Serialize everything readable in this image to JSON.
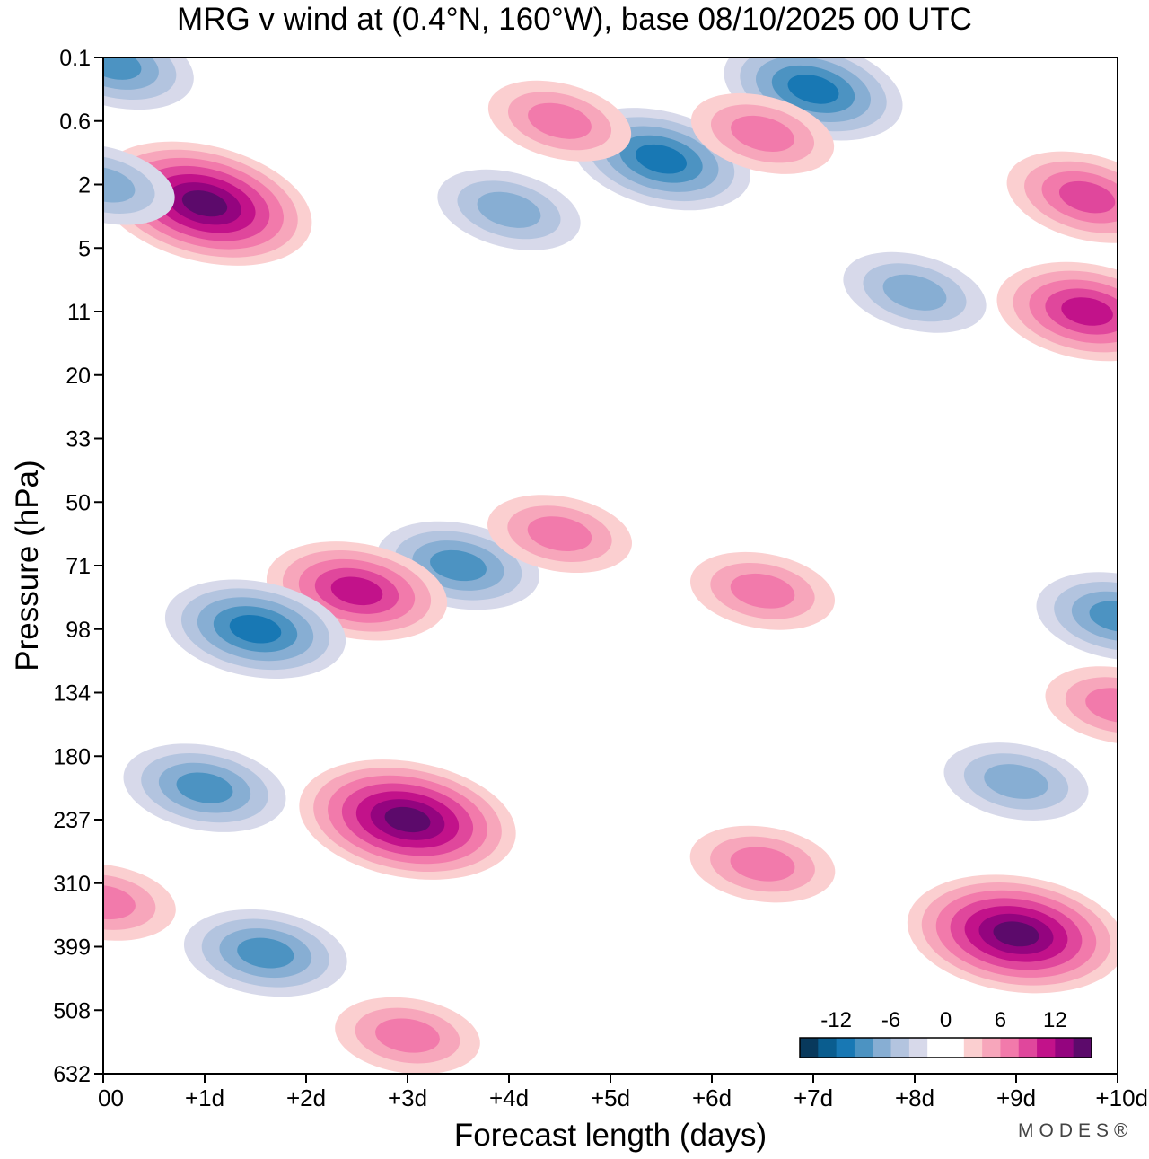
{
  "chart_data": {
    "type": "heatmap",
    "title": "MRG v wind at (0.4°N, 160°W),  base 08/10/2025  00 UTC",
    "xlabel": "Forecast length (days)",
    "ylabel": "Pressure (hPa)",
    "x_range": [
      0,
      10
    ],
    "x_ticks": [
      {
        "value": 0,
        "label": "00"
      },
      {
        "value": 1,
        "label": "+1d"
      },
      {
        "value": 2,
        "label": "+2d"
      },
      {
        "value": 3,
        "label": "+3d"
      },
      {
        "value": 4,
        "label": "+4d"
      },
      {
        "value": 5,
        "label": "+5d"
      },
      {
        "value": 6,
        "label": "+6d"
      },
      {
        "value": 7,
        "label": "+7d"
      },
      {
        "value": 8,
        "label": "+8d"
      },
      {
        "value": 9,
        "label": "+9d"
      },
      {
        "value": 10,
        "label": "+10d"
      }
    ],
    "y_ticks": [
      "0.1",
      "0.6",
      "2",
      "5",
      "11",
      "20",
      "33",
      "50",
      "71",
      "98",
      "134",
      "180",
      "237",
      "310",
      "399",
      "508",
      "632"
    ],
    "y_axis": "pressure, ordered by model level, increasing downward",
    "colorbar": {
      "labels": [
        {
          "value": -12,
          "label": "-12"
        },
        {
          "value": -6,
          "label": "-6"
        },
        {
          "value": 0,
          "label": "0"
        },
        {
          "value": 6,
          "label": "6"
        },
        {
          "value": 12,
          "label": "12"
        }
      ],
      "colors": [
        "#08395c",
        "#0a5d8f",
        "#1878b4",
        "#4c93c2",
        "#87aed3",
        "#b3c4df",
        "#d7d9ea",
        "#ffffff",
        "#ffffff",
        "#fbcfd0",
        "#f7a6bb",
        "#f27aab",
        "#e0479c",
        "#c2128a",
        "#94047f",
        "#5c0a6b"
      ]
    },
    "features": [
      {
        "day": 1.0,
        "level": 2.3,
        "sign": "+",
        "peak": 14
      },
      {
        "day": 0.1,
        "level": 0.1,
        "sign": "-",
        "peak": -8
      },
      {
        "day": 0.0,
        "level": 2.0,
        "sign": "-",
        "peak": -6
      },
      {
        "day": 5.5,
        "level": 1.6,
        "sign": "-",
        "peak": -9
      },
      {
        "day": 7.0,
        "level": 0.5,
        "sign": "-",
        "peak": -10
      },
      {
        "day": 4.0,
        "level": 2.4,
        "sign": "-",
        "peak": -6
      },
      {
        "day": 4.5,
        "level": 1.0,
        "sign": "+",
        "peak": 6
      },
      {
        "day": 6.5,
        "level": 1.2,
        "sign": "+",
        "peak": 6
      },
      {
        "day": 9.7,
        "level": 2.2,
        "sign": "+",
        "peak": 8
      },
      {
        "day": 9.7,
        "level": 4.0,
        "sign": "+",
        "peak": 10
      },
      {
        "day": 8.0,
        "level": 3.7,
        "sign": "-",
        "peak": -6
      },
      {
        "day": 3.5,
        "level": 8.0,
        "sign": "-",
        "peak": -8
      },
      {
        "day": 2.5,
        "level": 8.4,
        "sign": "+",
        "peak": 10
      },
      {
        "day": 4.5,
        "level": 7.5,
        "sign": "+",
        "peak": 6
      },
      {
        "day": 6.5,
        "level": 8.4,
        "sign": "+",
        "peak": 6
      },
      {
        "day": 1.5,
        "level": 9.0,
        "sign": "-",
        "peak": -10
      },
      {
        "day": 10.0,
        "level": 8.8,
        "sign": "-",
        "peak": -8
      },
      {
        "day": 3.0,
        "level": 12.0,
        "sign": "+",
        "peak": 16
      },
      {
        "day": 1.0,
        "level": 11.5,
        "sign": "-",
        "peak": -7
      },
      {
        "day": 9.0,
        "level": 13.8,
        "sign": "+",
        "peak": 13
      },
      {
        "day": 9.0,
        "level": 11.4,
        "sign": "-",
        "peak": -6
      },
      {
        "day": 10.0,
        "level": 10.2,
        "sign": "+",
        "peak": 6
      },
      {
        "day": 6.5,
        "level": 12.7,
        "sign": "+",
        "peak": 6
      },
      {
        "day": 1.6,
        "level": 14.1,
        "sign": "-",
        "peak": -7
      },
      {
        "day": 0.0,
        "level": 13.3,
        "sign": "+",
        "peak": 6
      },
      {
        "day": 3.0,
        "level": 15.4,
        "sign": "+",
        "peak": 6
      }
    ]
  },
  "watermark": "MODES®"
}
